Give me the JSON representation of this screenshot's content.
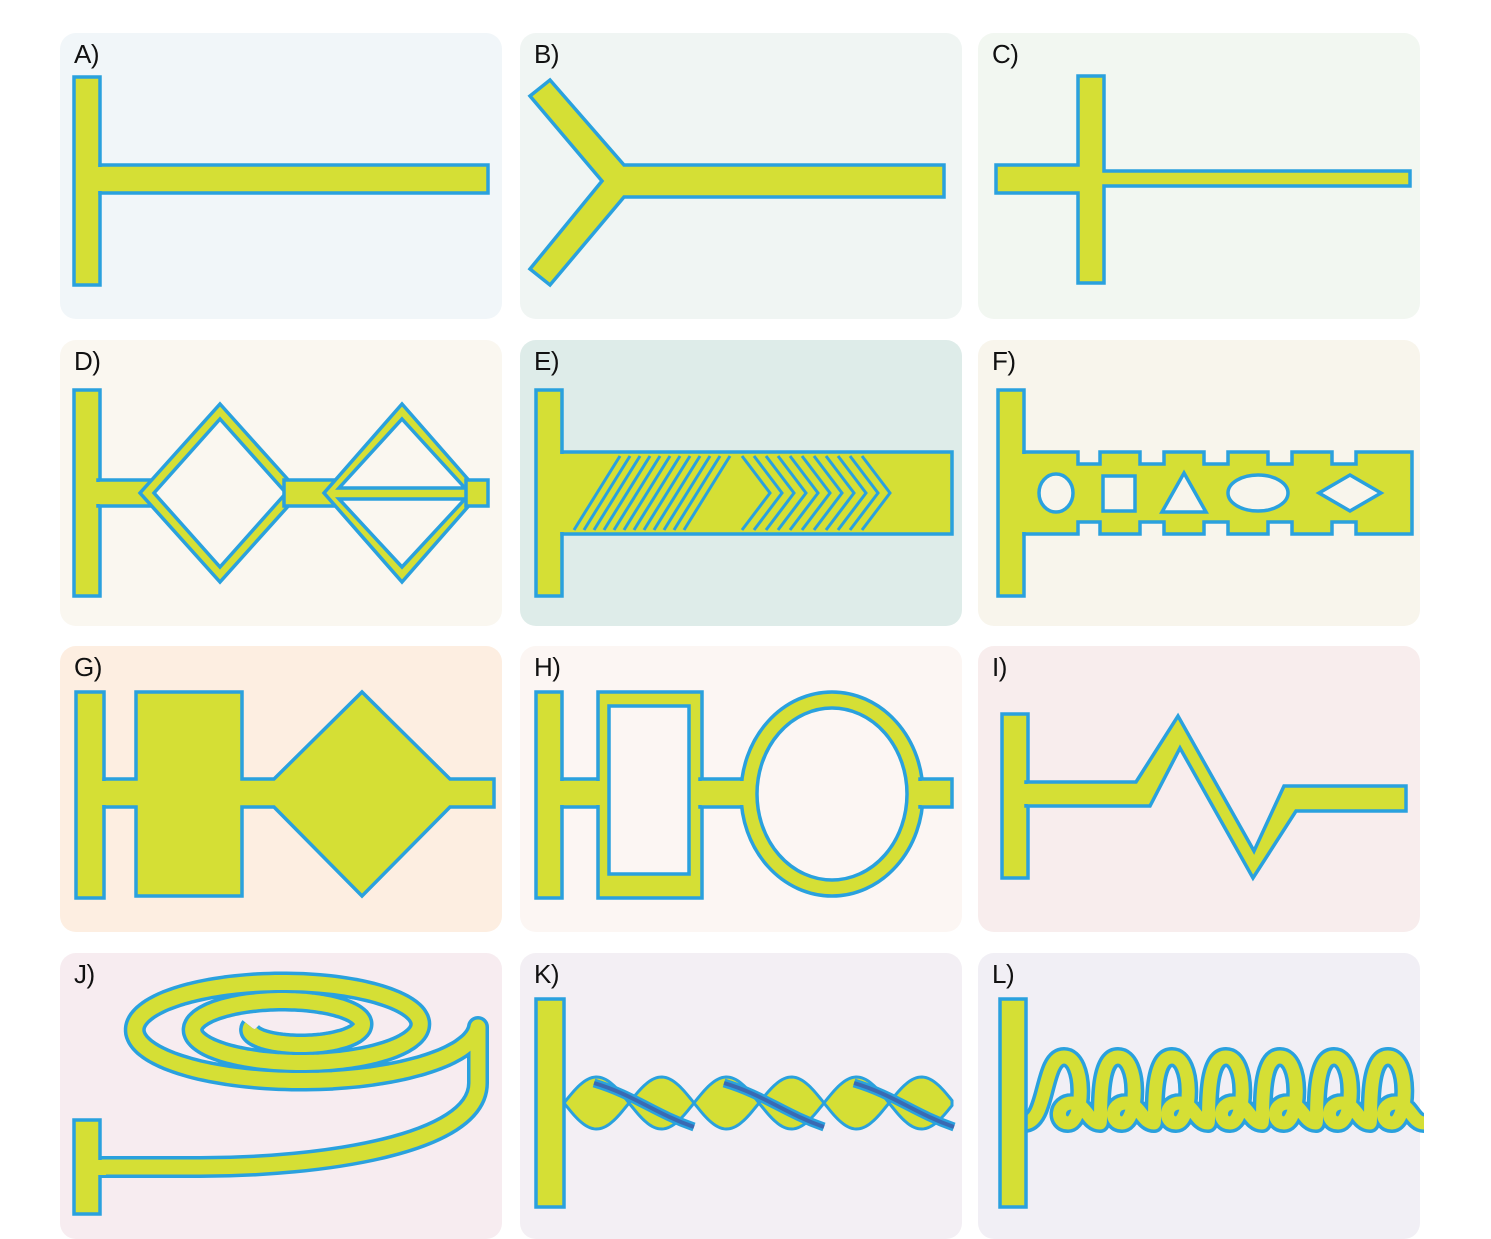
{
  "colors": {
    "channel_fill": "#d5df35",
    "channel_outline": "#2aa1de",
    "twist_dark": "#3a6ab3"
  },
  "panels": [
    {
      "id": "A",
      "label": "A)",
      "bg": "#f1f6f9"
    },
    {
      "id": "B",
      "label": "B)",
      "bg": "#f0f5f3"
    },
    {
      "id": "C",
      "label": "C)",
      "bg": "#f2f7f1"
    },
    {
      "id": "D",
      "label": "D)",
      "bg": "#faf7f0"
    },
    {
      "id": "E",
      "label": "E)",
      "bg": "#deece9"
    },
    {
      "id": "F",
      "label": "F)",
      "bg": "#f8f5ec"
    },
    {
      "id": "G",
      "label": "G)",
      "bg": "#fdeee1"
    },
    {
      "id": "H",
      "label": "H)",
      "bg": "#fcf6f3"
    },
    {
      "id": "I",
      "label": "I)",
      "bg": "#f8eded"
    },
    {
      "id": "J",
      "label": "J)",
      "bg": "#f7ecf0"
    },
    {
      "id": "K",
      "label": "K)",
      "bg": "#f3eff4"
    },
    {
      "id": "L",
      "label": "L)",
      "bg": "#f1eff5"
    }
  ]
}
